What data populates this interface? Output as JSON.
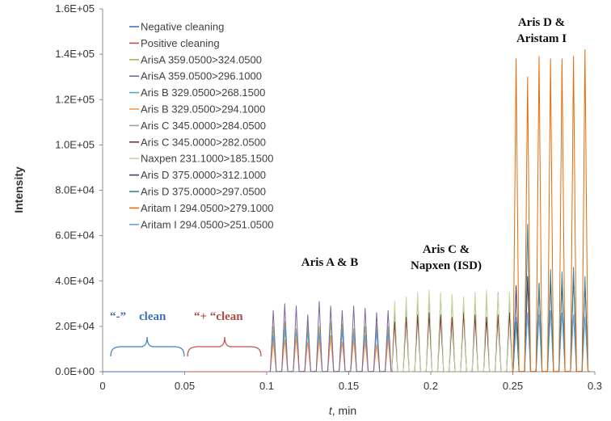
{
  "chart_data": {
    "type": "line",
    "title": "",
    "xlabel_var": "t",
    "xlabel_rest": ", min",
    "ylabel": "Intensity",
    "xlim": [
      0,
      0.3
    ],
    "ylim": [
      0,
      160000
    ],
    "x_ticks": [
      0,
      0.05,
      0.1,
      0.15,
      0.2,
      0.25,
      0.3
    ],
    "x_tick_labels": [
      "0",
      "0.05",
      "0.1",
      "0.15",
      "0.2",
      "0.25",
      "0.3"
    ],
    "y_ticks": [
      0,
      20000,
      40000,
      60000,
      80000,
      100000,
      120000,
      140000,
      160000
    ],
    "y_tick_labels": [
      "0.0E+00",
      "2.0E+04",
      "4.0E+04",
      "6.0E+04",
      "8.0E+04",
      "1.0E+05",
      "1.2E+05",
      "1.4E+05",
      "1.6E+05"
    ],
    "grid": false,
    "legend_position": "top-left",
    "series": [
      {
        "name": "Negative cleaning",
        "color": "#4472c4",
        "x": [
          0,
          0.05
        ],
        "y": [
          0,
          0
        ]
      },
      {
        "name": "Positive cleaning",
        "color": "#c0504d",
        "x": [
          0.05,
          0.1
        ],
        "y": [
          0,
          0
        ]
      },
      {
        "name": "ArisA 359.0500>324.0500",
        "color": "#9bbb59",
        "x": [
          0.104,
          0.111,
          0.118,
          0.125,
          0.132,
          0.139,
          0.146,
          0.153,
          0.16,
          0.167,
          0.174
        ],
        "y": [
          20000,
          22000,
          19000,
          21000,
          20000,
          22000,
          21000,
          19000,
          20000,
          21000,
          20000
        ]
      },
      {
        "name": "ArisA 359.0500>296.1000",
        "color": "#8064a2",
        "x": [
          0.104,
          0.111,
          0.118,
          0.125,
          0.132,
          0.139,
          0.146,
          0.153,
          0.16,
          0.167,
          0.174
        ],
        "y": [
          27000,
          30000,
          29000,
          25000,
          31000,
          29000,
          27000,
          29000,
          28000,
          26000,
          27000
        ]
      },
      {
        "name": "Aris B 329.0500>268.1500",
        "color": "#4bacc6",
        "x": [
          0.104,
          0.111,
          0.118,
          0.125,
          0.132,
          0.139,
          0.146,
          0.153,
          0.16,
          0.167,
          0.174
        ],
        "y": [
          16000,
          19000,
          17000,
          18000,
          17000,
          16000,
          18000,
          17000,
          16000,
          18000,
          17000
        ]
      },
      {
        "name": "Aris B 329.0500>294.1000",
        "color": "#f79646",
        "x": [
          0.104,
          0.111,
          0.118,
          0.125,
          0.132,
          0.139,
          0.146,
          0.153,
          0.16,
          0.167,
          0.174
        ],
        "y": [
          13000,
          14000,
          15000,
          13000,
          14000,
          15000,
          13000,
          14000,
          13000,
          12000,
          14000
        ]
      },
      {
        "name": "Aris C 345.0000>284.0500",
        "color": "#a0a0a0",
        "x": [
          0.178,
          0.185,
          0.192,
          0.199,
          0.206,
          0.213,
          0.22,
          0.227,
          0.234,
          0.241,
          0.248
        ],
        "y": [
          27000,
          30000,
          32000,
          33000,
          34000,
          33000,
          31000,
          32000,
          34000,
          35000,
          33000
        ]
      },
      {
        "name": "Aris C 345.0000>282.0500",
        "color": "#7b2c3e",
        "x": [
          0.178,
          0.185,
          0.192,
          0.199,
          0.206,
          0.213,
          0.22,
          0.227,
          0.234,
          0.241,
          0.248
        ],
        "y": [
          22000,
          24000,
          25000,
          26000,
          25000,
          24000,
          26000,
          25000,
          24000,
          25000,
          26000
        ]
      },
      {
        "name": "Naxpen 231.1000>185.1500",
        "color": "#c4d79b",
        "x": [
          0.178,
          0.185,
          0.192,
          0.199,
          0.206,
          0.213,
          0.22,
          0.227,
          0.234,
          0.241,
          0.248
        ],
        "y": [
          31000,
          33000,
          35000,
          36000,
          35000,
          34000,
          33000,
          35000,
          36000,
          34000,
          35000
        ]
      },
      {
        "name": "Aris D 375.0000>312.1000",
        "color": "#3d3d6b",
        "x": [
          0.252,
          0.259,
          0.266,
          0.273,
          0.28,
          0.287,
          0.294
        ],
        "y": [
          38000,
          42000,
          39000,
          41000,
          40000,
          43000,
          39000
        ]
      },
      {
        "name": "Aris D  375.0000>297.0500",
        "color": "#31859c",
        "x": [
          0.252,
          0.259,
          0.266,
          0.273,
          0.28,
          0.287,
          0.294
        ],
        "y": [
          22000,
          65000,
          38000,
          45000,
          44000,
          46000,
          42000
        ]
      },
      {
        "name": "Aritam I 294.0500>279.1000",
        "color": "#e46c0a",
        "x": [
          0.252,
          0.259,
          0.266,
          0.273,
          0.28,
          0.287,
          0.294
        ],
        "y": [
          138000,
          130000,
          139000,
          138000,
          138000,
          139000,
          142000
        ]
      },
      {
        "name": "Aritam I 294.0500>251.0500",
        "color": "#6fa0dc",
        "x": [
          0.252,
          0.259,
          0.266,
          0.273,
          0.28,
          0.287,
          0.294
        ],
        "y": [
          24000,
          26000,
          25000,
          27000,
          26000,
          25000,
          24000
        ]
      }
    ],
    "annotations": {
      "aris_ab": "Aris A & B",
      "aris_c_line1": "Aris C &",
      "aris_c_line2": "Napxen (ISD)",
      "aris_d_line1": "Aris D &",
      "aris_d_line2": "Aristam I",
      "neg_clean_sign": "“-”",
      "neg_clean_word": "clean",
      "pos_clean": "“+ “clean"
    }
  }
}
